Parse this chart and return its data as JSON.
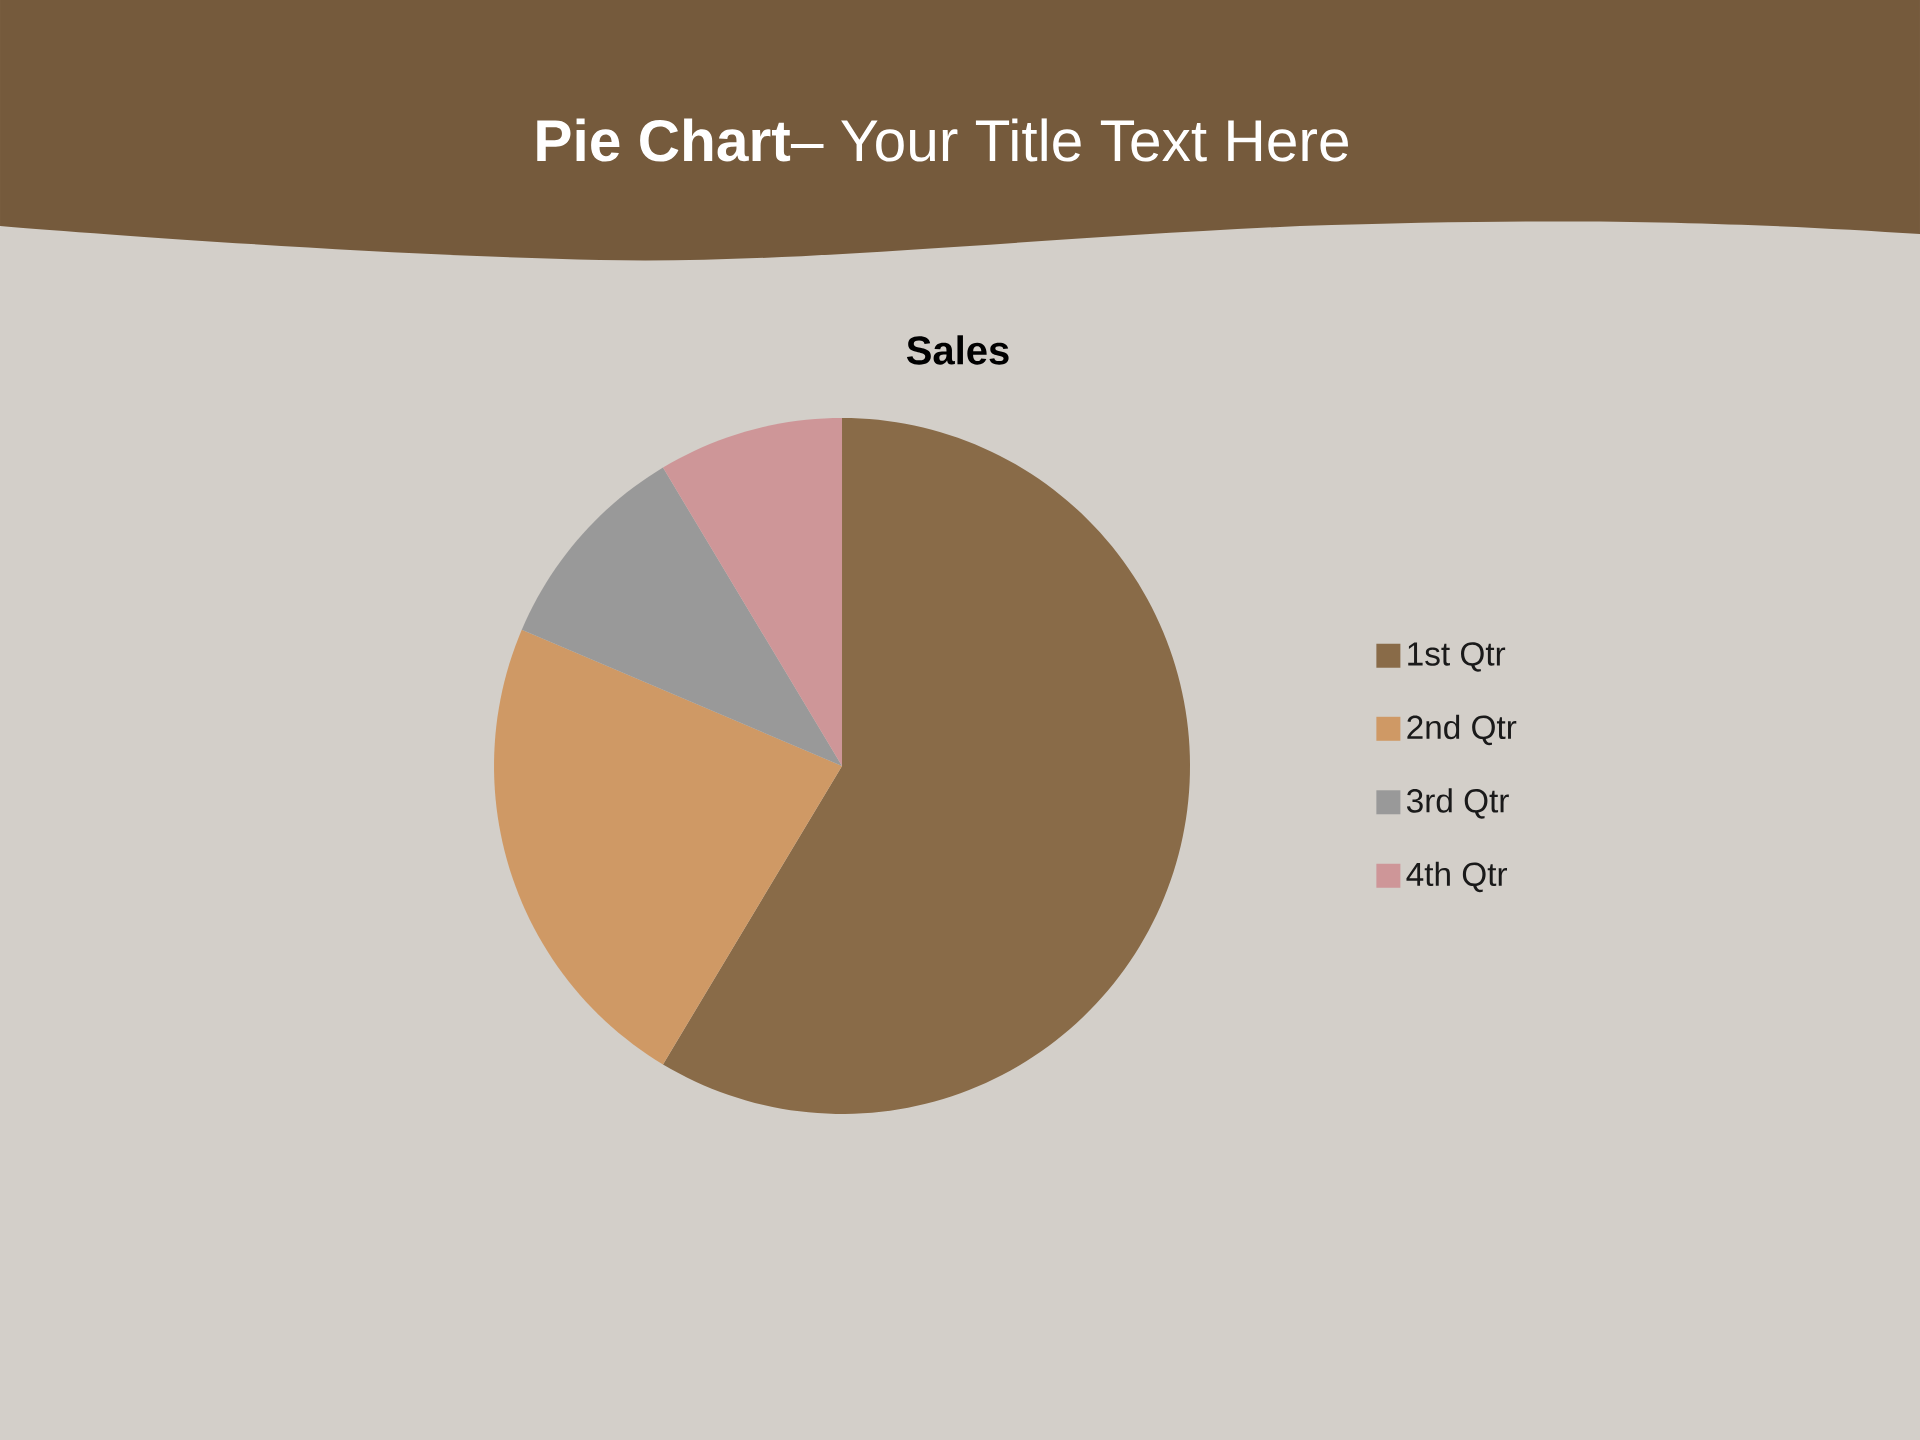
{
  "chart_data": {
    "type": "pie",
    "title": "**Pie Chart**– Your Title Text Here",
    "subtitle": "Sales",
    "categories": [
      "1st Qtr",
      "2nd Qtr",
      "3rd Qtr",
      "4th Qtr"
    ],
    "values": [
      58.6,
      22.8,
      10.0,
      8.6
    ],
    "colors": [
      "#896b48",
      "#cf9965",
      "#999999",
      "#ce9698"
    ],
    "legend": "right"
  }
}
